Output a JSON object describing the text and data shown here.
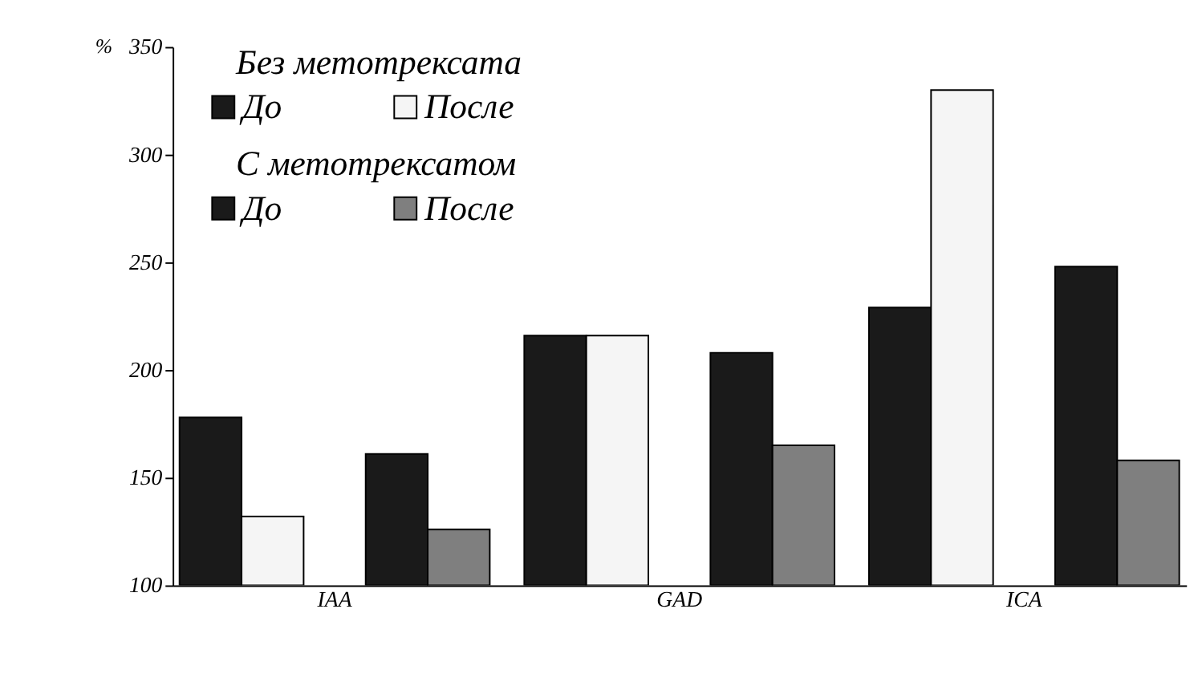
{
  "chart_data": {
    "type": "bar",
    "ylabel": "%",
    "categories": [
      "IAA",
      "GAD",
      "ICA"
    ],
    "series": [
      {
        "name": "До",
        "color": "#1a1a1a",
        "values": [
          178,
          216,
          229
        ]
      },
      {
        "name": "После",
        "color": "#f5f5f5",
        "values": [
          132,
          216,
          330
        ]
      },
      {
        "name": "До",
        "color": "#1a1a1a",
        "values": [
          161,
          208,
          248
        ]
      },
      {
        "name": "После",
        "color": "#7f7f7f",
        "values": [
          126,
          165,
          158
        ]
      }
    ],
    "annotations": [
      "Без метотрексата",
      "С метотрексатом"
    ],
    "ylim": [
      100,
      350
    ],
    "yticks": [
      100,
      150,
      200,
      250,
      300,
      350
    ],
    "grid": false,
    "legend": "top left"
  }
}
